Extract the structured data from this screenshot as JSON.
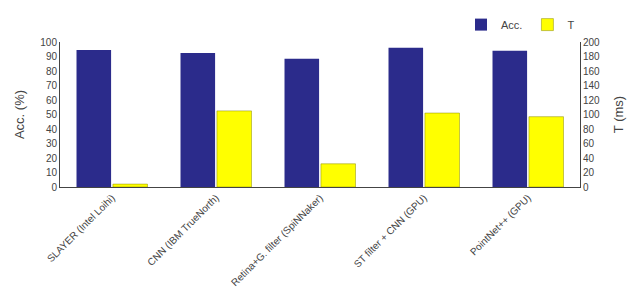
{
  "chart_data": {
    "type": "bar",
    "categories": [
      "SLAYER (Intel Loihi)",
      "CNN (IBM TrueNorth)",
      "Retina+G. filter (SpiNNaker)",
      "ST filter + CNN (GPU)",
      "PointNet++ (GPU)"
    ],
    "series": [
      {
        "name": "Acc.",
        "color": "#2b2b8b",
        "values": [
          94.5,
          92.5,
          88.5,
          96.0,
          94.0
        ]
      },
      {
        "name": "T",
        "color": "#ffff00",
        "values": [
          4.0,
          105.0,
          32.0,
          102.0,
          97.0
        ],
        "axis": "y2"
      }
    ],
    "ylabel": "Acc. (%)",
    "y2label": "T (ms)",
    "ylim": [
      0,
      100
    ],
    "yticks": [
      0,
      10,
      20,
      30,
      40,
      50,
      60,
      70,
      80,
      90,
      100
    ],
    "y2lim": [
      0,
      200
    ],
    "y2ticks": [
      0,
      20,
      40,
      60,
      80,
      100,
      120,
      140,
      160,
      180,
      200
    ],
    "grid": false,
    "legend": "upper right"
  }
}
